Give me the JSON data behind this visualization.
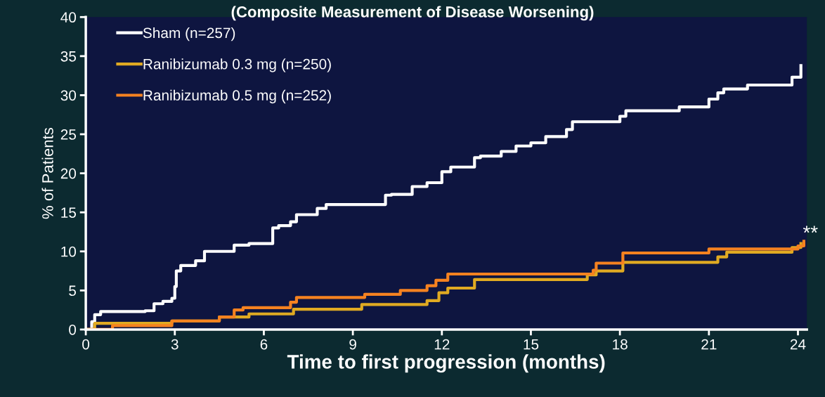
{
  "chart_data": {
    "type": "step",
    "title": "(Composite Measurement of Disease Worsening)",
    "xlabel": "Time to first progression (months)",
    "ylabel": "% of Patients",
    "xlim": [
      0,
      24.3
    ],
    "ylim": [
      0,
      40
    ],
    "xticks": [
      0,
      3,
      6,
      9,
      12,
      15,
      18,
      21,
      24
    ],
    "yticks": [
      0,
      5,
      10,
      15,
      20,
      25,
      30,
      35,
      40
    ],
    "grid": false,
    "legend": "top left",
    "marker": "none",
    "line_style": "solid",
    "annotations": [
      "**"
    ],
    "series": [
      {
        "name": "Sham (n=257)",
        "color": "#ffffff",
        "x": [
          0,
          0.2,
          0.3,
          0.5,
          2.0,
          2.3,
          2.6,
          2.9,
          3.0,
          3.05,
          3.2,
          3.7,
          4.0,
          5.0,
          5.5,
          6.3,
          6.5,
          6.9,
          7.1,
          7.8,
          8.1,
          10.1,
          10.3,
          11.0,
          11.5,
          12.0,
          12.3,
          13.1,
          13.3,
          14.0,
          14.5,
          15.0,
          15.5,
          16.2,
          16.4,
          18.0,
          18.2,
          20.0,
          21.0,
          21.3,
          21.5,
          22.3,
          23.8,
          24.1
        ],
        "values": [
          0,
          1,
          1.9,
          2.3,
          2.4,
          3.3,
          3.6,
          4.0,
          5.5,
          7.5,
          8.2,
          8.8,
          10.0,
          10.8,
          11.0,
          13.0,
          13.3,
          13.8,
          14.7,
          15.5,
          16.0,
          17.2,
          17.3,
          18.3,
          18.8,
          20.2,
          20.8,
          22.0,
          22.2,
          22.8,
          23.5,
          23.9,
          24.7,
          25.6,
          26.6,
          27.3,
          28.0,
          28.5,
          29.5,
          30.3,
          30.8,
          31.3,
          32.3,
          33.8
        ]
      },
      {
        "name": "Ranibizumab 0.3 mg (n=250)",
        "color": "#e0aa22",
        "x": [
          0,
          0.3,
          2.9,
          4.5,
          5.5,
          7.0,
          9.3,
          11.5,
          11.9,
          12.2,
          13.1,
          16.9,
          17.2,
          18.1,
          21.3,
          21.6,
          23.8,
          24.1
        ],
        "values": [
          0,
          0.8,
          1.1,
          1.6,
          2.0,
          2.6,
          3.2,
          3.7,
          4.7,
          5.3,
          6.4,
          7.0,
          7.5,
          8.6,
          9.3,
          9.9,
          10.5,
          11.0
        ]
      },
      {
        "name": "Ranibizumab 0.5 mg (n=252)",
        "color": "#f58220",
        "x": [
          0,
          0.9,
          2.9,
          4.5,
          5.0,
          5.3,
          6.9,
          7.1,
          9.4,
          10.6,
          11.5,
          11.8,
          12.2,
          17.1,
          17.2,
          18.1,
          21.0,
          24.0,
          24.2
        ],
        "values": [
          0,
          0.5,
          1.1,
          1.6,
          2.5,
          2.8,
          3.5,
          4.1,
          4.5,
          5.0,
          5.6,
          6.3,
          7.1,
          7.6,
          8.5,
          9.8,
          10.3,
          10.7,
          11.3
        ]
      }
    ]
  }
}
